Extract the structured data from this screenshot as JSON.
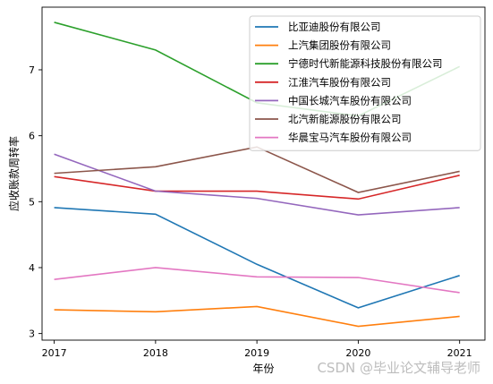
{
  "chart_data": {
    "type": "line",
    "title": "",
    "xlabel": "年份",
    "ylabel": "应收账款周转率",
    "x": [
      2017,
      2018,
      2019,
      2020,
      2021
    ],
    "xlim": [
      2016.88,
      2021.25
    ],
    "ylim": [
      2.9,
      7.95
    ],
    "yticks": [
      3,
      4,
      5,
      6,
      7
    ],
    "grid": false,
    "legend_position": "upper right",
    "series": [
      {
        "name": "比亚迪股份有限公司",
        "color": "#1f77b4",
        "values": [
          4.91,
          4.81,
          4.05,
          3.39,
          3.88
        ]
      },
      {
        "name": "上汽集团股份有限公司",
        "color": "#ff7f0e",
        "values": [
          3.36,
          3.33,
          3.41,
          3.11,
          3.26
        ]
      },
      {
        "name": "宁德时代新能源科技股份有限公司",
        "color": "#2ca02c",
        "values": [
          7.72,
          7.3,
          6.5,
          6.3,
          7.05
        ]
      },
      {
        "name": "江淮汽车股份有限公司",
        "color": "#d62728",
        "values": [
          5.38,
          5.16,
          5.16,
          5.04,
          5.4
        ]
      },
      {
        "name": "中国长城汽车股份有限公司",
        "color": "#9467bd",
        "values": [
          5.72,
          5.16,
          5.05,
          4.8,
          4.91
        ]
      },
      {
        "name": "北汽新能源股份有限公司",
        "color": "#8c564b",
        "values": [
          5.43,
          5.53,
          5.83,
          5.14,
          5.46
        ]
      },
      {
        "name": "华晨宝马汽车股份有限公司",
        "color": "#e377c2",
        "values": [
          3.82,
          4.0,
          3.86,
          3.85,
          3.62
        ]
      }
    ]
  },
  "watermark": "CSDN @毕业论文辅导老师"
}
